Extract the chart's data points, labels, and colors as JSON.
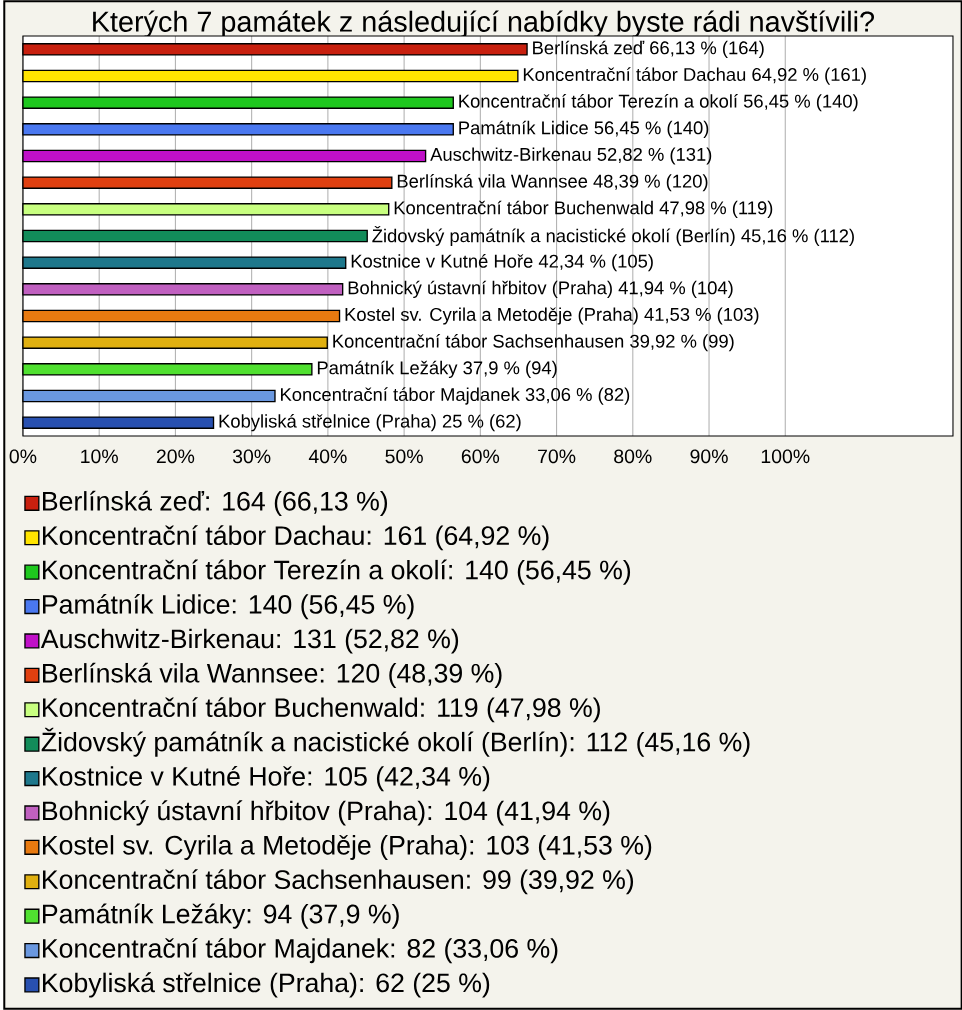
{
  "chart_data": {
    "type": "bar",
    "orientation": "horizontal",
    "title": "Kterých 7 památek z následující nabídky byste rádi navštívili?",
    "categories": [
      null,
      null,
      null,
      null,
      null,
      null,
      null,
      null,
      null,
      null,
      null,
      null,
      null,
      null,
      null
    ],
    "series": [
      {
        "name": "Berlínská zeď: 164 (66,13 %)",
        "color": "#c8200f",
        "values": [
          66.13,
          null,
          null,
          null,
          null,
          null,
          null,
          null,
          null,
          null,
          null,
          null,
          null,
          null,
          null
        ],
        "value_labels": [
          "Berlínská zeď 66,13 % (164)",
          null,
          null,
          null,
          null,
          null,
          null,
          null,
          null,
          null,
          null,
          null,
          null,
          null,
          null
        ]
      },
      {
        "name": "Koncentrační tábor Dachau: 161 (64,92 %)",
        "color": "#ffe400",
        "values": [
          null,
          64.92,
          null,
          null,
          null,
          null,
          null,
          null,
          null,
          null,
          null,
          null,
          null,
          null,
          null
        ],
        "value_labels": [
          null,
          "Koncentrační tábor Dachau 64,92 % (161)",
          null,
          null,
          null,
          null,
          null,
          null,
          null,
          null,
          null,
          null,
          null,
          null,
          null
        ]
      },
      {
        "name": "Koncentrační tábor Terezín a okolí: 140 (56,45 %)",
        "color": "#1ec81e",
        "values": [
          null,
          null,
          56.45,
          null,
          null,
          null,
          null,
          null,
          null,
          null,
          null,
          null,
          null,
          null,
          null
        ],
        "value_labels": [
          null,
          null,
          "Koncentrační tábor Terezín a okolí 56,45 % (140)",
          null,
          null,
          null,
          null,
          null,
          null,
          null,
          null,
          null,
          null,
          null,
          null
        ]
      },
      {
        "name": "Památník Lidice: 140 (56,45 %)",
        "color": "#4a78f0",
        "values": [
          null,
          null,
          null,
          56.45,
          null,
          null,
          null,
          null,
          null,
          null,
          null,
          null,
          null,
          null,
          null
        ],
        "value_labels": [
          null,
          null,
          null,
          "Památník Lidice 56,45 % (140)",
          null,
          null,
          null,
          null,
          null,
          null,
          null,
          null,
          null,
          null,
          null
        ]
      },
      {
        "name": "Auschwitz-Birkenau: 131 (52,82 %)",
        "color": "#c010c8",
        "values": [
          null,
          null,
          null,
          null,
          52.82,
          null,
          null,
          null,
          null,
          null,
          null,
          null,
          null,
          null,
          null
        ],
        "value_labels": [
          null,
          null,
          null,
          null,
          "Auschwitz-Birkenau 52,82 % (131)",
          null,
          null,
          null,
          null,
          null,
          null,
          null,
          null,
          null,
          null
        ]
      },
      {
        "name": "Berlínská vila Wannsee: 120 (48,39 %)",
        "color": "#e04010",
        "values": [
          null,
          null,
          null,
          null,
          null,
          48.39,
          null,
          null,
          null,
          null,
          null,
          null,
          null,
          null,
          null
        ],
        "value_labels": [
          null,
          null,
          null,
          null,
          null,
          "Berlínská vila Wannsee 48,39 % (120)",
          null,
          null,
          null,
          null,
          null,
          null,
          null,
          null,
          null
        ]
      },
      {
        "name": "Koncentrační tábor Buchenwald: 119 (47,98 %)",
        "color": "#c8ff80",
        "values": [
          null,
          null,
          null,
          null,
          null,
          null,
          47.98,
          null,
          null,
          null,
          null,
          null,
          null,
          null,
          null
        ],
        "value_labels": [
          null,
          null,
          null,
          null,
          null,
          null,
          "Koncentrační tábor Buchenwald 47,98 % (119)",
          null,
          null,
          null,
          null,
          null,
          null,
          null,
          null
        ]
      },
      {
        "name": "Židovský památník a nacistické okolí (Berlín): 112 (45,16 %)",
        "color": "#128c5a",
        "values": [
          null,
          null,
          null,
          null,
          null,
          null,
          null,
          45.16,
          null,
          null,
          null,
          null,
          null,
          null,
          null
        ],
        "value_labels": [
          null,
          null,
          null,
          null,
          null,
          null,
          null,
          "Židovský památník a nacistické okolí (Berlín) 45,16 % (112)",
          null,
          null,
          null,
          null,
          null,
          null,
          null
        ]
      },
      {
        "name": "Kostnice v Kutné Hoře: 105 (42,34 %)",
        "color": "#1e788c",
        "values": [
          null,
          null,
          null,
          null,
          null,
          null,
          null,
          null,
          42.34,
          null,
          null,
          null,
          null,
          null,
          null
        ],
        "value_labels": [
          null,
          null,
          null,
          null,
          null,
          null,
          null,
          null,
          "Kostnice v Kutné Hoře 42,34 % (105)",
          null,
          null,
          null,
          null,
          null,
          null
        ]
      },
      {
        "name": "Bohnický ústavní hřbitov (Praha): 104 (41,94 %)",
        "color": "#c060c0",
        "values": [
          null,
          null,
          null,
          null,
          null,
          null,
          null,
          null,
          null,
          41.94,
          null,
          null,
          null,
          null,
          null
        ],
        "value_labels": [
          null,
          null,
          null,
          null,
          null,
          null,
          null,
          null,
          null,
          "Bohnický ústavní hřbitov (Praha) 41,94 % (104)",
          null,
          null,
          null,
          null,
          null
        ]
      },
      {
        "name": "Kostel sv. Cyrila a Metoděje (Praha): 103 (41,53 %)",
        "color": "#e87a10",
        "values": [
          null,
          null,
          null,
          null,
          null,
          null,
          null,
          null,
          null,
          null,
          41.53,
          null,
          null,
          null,
          null
        ],
        "value_labels": [
          null,
          null,
          null,
          null,
          null,
          null,
          null,
          null,
          null,
          null,
          "Kostel sv. Cyrila a Metoděje (Praha) 41,53 % (103)",
          null,
          null,
          null,
          null
        ]
      },
      {
        "name": "Koncentrační tábor Sachsenhausen: 99 (39,92 %)",
        "color": "#e0b010",
        "values": [
          null,
          null,
          null,
          null,
          null,
          null,
          null,
          null,
          null,
          null,
          null,
          39.92,
          null,
          null,
          null
        ],
        "value_labels": [
          null,
          null,
          null,
          null,
          null,
          null,
          null,
          null,
          null,
          null,
          null,
          "Koncentrační tábor Sachsenhausen 39,92 % (99)",
          null,
          null,
          null
        ]
      },
      {
        "name": "Památník Ležáky: 94 (37,9 %)",
        "color": "#50e030",
        "values": [
          null,
          null,
          null,
          null,
          null,
          null,
          null,
          null,
          null,
          null,
          null,
          null,
          37.9,
          null,
          null
        ],
        "value_labels": [
          null,
          null,
          null,
          null,
          null,
          null,
          null,
          null,
          null,
          null,
          null,
          null,
          "Památník Ležáky 37,9 % (94)",
          null,
          null
        ]
      },
      {
        "name": "Koncentrační tábor Majdanek: 82 (33,06 %)",
        "color": "#6a98e0",
        "values": [
          null,
          null,
          null,
          null,
          null,
          null,
          null,
          null,
          null,
          null,
          null,
          null,
          null,
          33.06,
          null
        ],
        "value_labels": [
          null,
          null,
          null,
          null,
          null,
          null,
          null,
          null,
          null,
          null,
          null,
          null,
          null,
          "Koncentrační tábor Majdanek 33,06 % (82)",
          null
        ]
      },
      {
        "name": "Kobyliská střelnice (Praha): 62 (25 %)",
        "color": "#2850b0",
        "values": [
          null,
          null,
          null,
          null,
          null,
          null,
          null,
          null,
          null,
          null,
          null,
          null,
          null,
          null,
          25
        ],
        "value_labels": [
          null,
          null,
          null,
          null,
          null,
          null,
          null,
          null,
          null,
          null,
          null,
          null,
          null,
          null,
          "Kobyliská střelnice (Praha) 25 % (62)"
        ]
      }
    ],
    "xlim": [
      0,
      122
    ],
    "xticks": [
      {
        "value": 0,
        "label": "0%"
      },
      {
        "value": 10,
        "label": "10%"
      },
      {
        "value": 20,
        "label": "20%"
      },
      {
        "value": 30,
        "label": "30%"
      },
      {
        "value": 40,
        "label": "40%"
      },
      {
        "value": 50,
        "label": "50%"
      },
      {
        "value": 60,
        "label": "60%"
      },
      {
        "value": 70,
        "label": "70%"
      },
      {
        "value": 80,
        "label": "80%"
      },
      {
        "value": 90,
        "label": "90%"
      },
      {
        "value": 100,
        "label": "100%"
      }
    ],
    "grid": "x",
    "tick_labels": "x",
    "legend": "bottom"
  }
}
